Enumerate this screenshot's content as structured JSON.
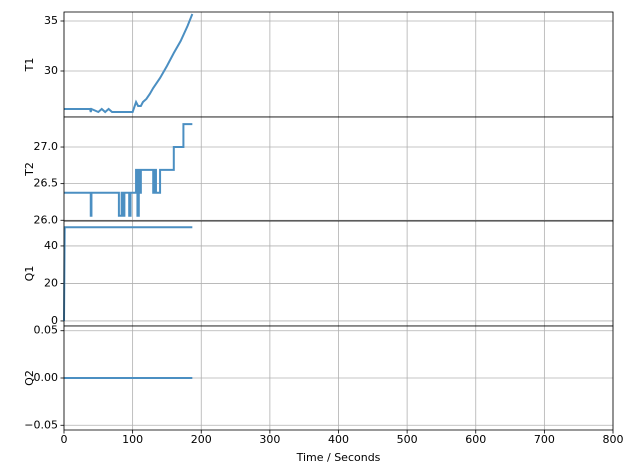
{
  "chart_data": [
    {
      "type": "line",
      "ylabel": "T1",
      "x": [
        0,
        38,
        39,
        40,
        50,
        55,
        60,
        65,
        70,
        100,
        105,
        108,
        112,
        115,
        120,
        125,
        130,
        140,
        150,
        160,
        170,
        180,
        187
      ],
      "series": [
        {
          "color": "#4b8fc2",
          "values": [
            26.2,
            26.2,
            25.9,
            26.2,
            25.9,
            26.2,
            25.9,
            26.2,
            25.9,
            25.9,
            26.9,
            26.5,
            26.5,
            26.9,
            27.2,
            27.7,
            28.3,
            29.3,
            30.5,
            31.8,
            33.0,
            34.5,
            35.7
          ]
        }
      ],
      "xlim": [
        0,
        800
      ],
      "xticks": [
        0,
        100,
        200,
        300,
        400,
        500,
        600,
        700,
        800
      ],
      "ylim": [
        25.4,
        35.9
      ],
      "yticks": [
        30,
        35
      ],
      "grid": true
    },
    {
      "type": "line",
      "ylabel": "T2",
      "x": [
        0,
        39,
        39,
        40,
        40,
        80,
        80,
        84,
        84,
        86,
        86,
        88,
        88,
        95,
        95,
        97,
        97,
        105,
        105,
        107,
        107,
        109,
        109,
        110,
        110,
        112,
        112,
        130,
        130,
        132,
        132,
        134,
        134,
        140,
        140,
        160,
        160,
        174,
        174,
        187
      ],
      "series": [
        {
          "color": "#4b8fc2",
          "values": [
            26.375,
            26.375,
            26.0625,
            26.0625,
            26.375,
            26.375,
            26.0625,
            26.0625,
            26.375,
            26.375,
            26.0625,
            26.0625,
            26.375,
            26.375,
            26.0625,
            26.0625,
            26.375,
            26.375,
            26.6875,
            26.6875,
            26.0625,
            26.0625,
            26.6875,
            26.6875,
            26.375,
            26.375,
            26.6875,
            26.6875,
            26.375,
            26.375,
            26.6875,
            26.6875,
            26.375,
            26.375,
            26.6875,
            26.6875,
            27.0,
            27.0,
            27.3125,
            27.3125
          ]
        }
      ],
      "xlim": [
        0,
        800
      ],
      "xticks": [
        0,
        100,
        200,
        300,
        400,
        500,
        600,
        700,
        800
      ],
      "ylim": [
        25.99,
        27.41
      ],
      "yticks": [
        {
          "value": 26,
          "label": "26.0"
        },
        26.5,
        {
          "value": 27,
          "label": "27.0"
        }
      ],
      "grid": true
    },
    {
      "type": "line",
      "ylabel": "Q1",
      "x": [
        0,
        1,
        187
      ],
      "series": [
        {
          "color": "#4b8fc2",
          "values": [
            0,
            50,
            50
          ]
        }
      ],
      "xlim": [
        0,
        800
      ],
      "xticks": [
        0,
        100,
        200,
        300,
        400,
        500,
        600,
        700,
        800
      ],
      "ylim": [
        -2.7,
        53.3
      ],
      "yticks": [
        0,
        20,
        40
      ],
      "grid": true
    },
    {
      "type": "line",
      "ylabel": "Q2",
      "xlabel": "Time / Seconds",
      "x": [
        0,
        187
      ],
      "series": [
        {
          "color": "#4b8fc2",
          "values": [
            0,
            0
          ]
        }
      ],
      "xlim": [
        0,
        800
      ],
      "xticks": [
        0,
        100,
        200,
        300,
        400,
        500,
        600,
        700,
        800
      ],
      "ylim": [
        -0.055,
        0.055
      ],
      "yticks": [
        {
          "value": -0.05,
          "label": "−0.05"
        },
        {
          "value": 0,
          "label": "0.00"
        },
        0.05
      ],
      "grid": true
    }
  ]
}
